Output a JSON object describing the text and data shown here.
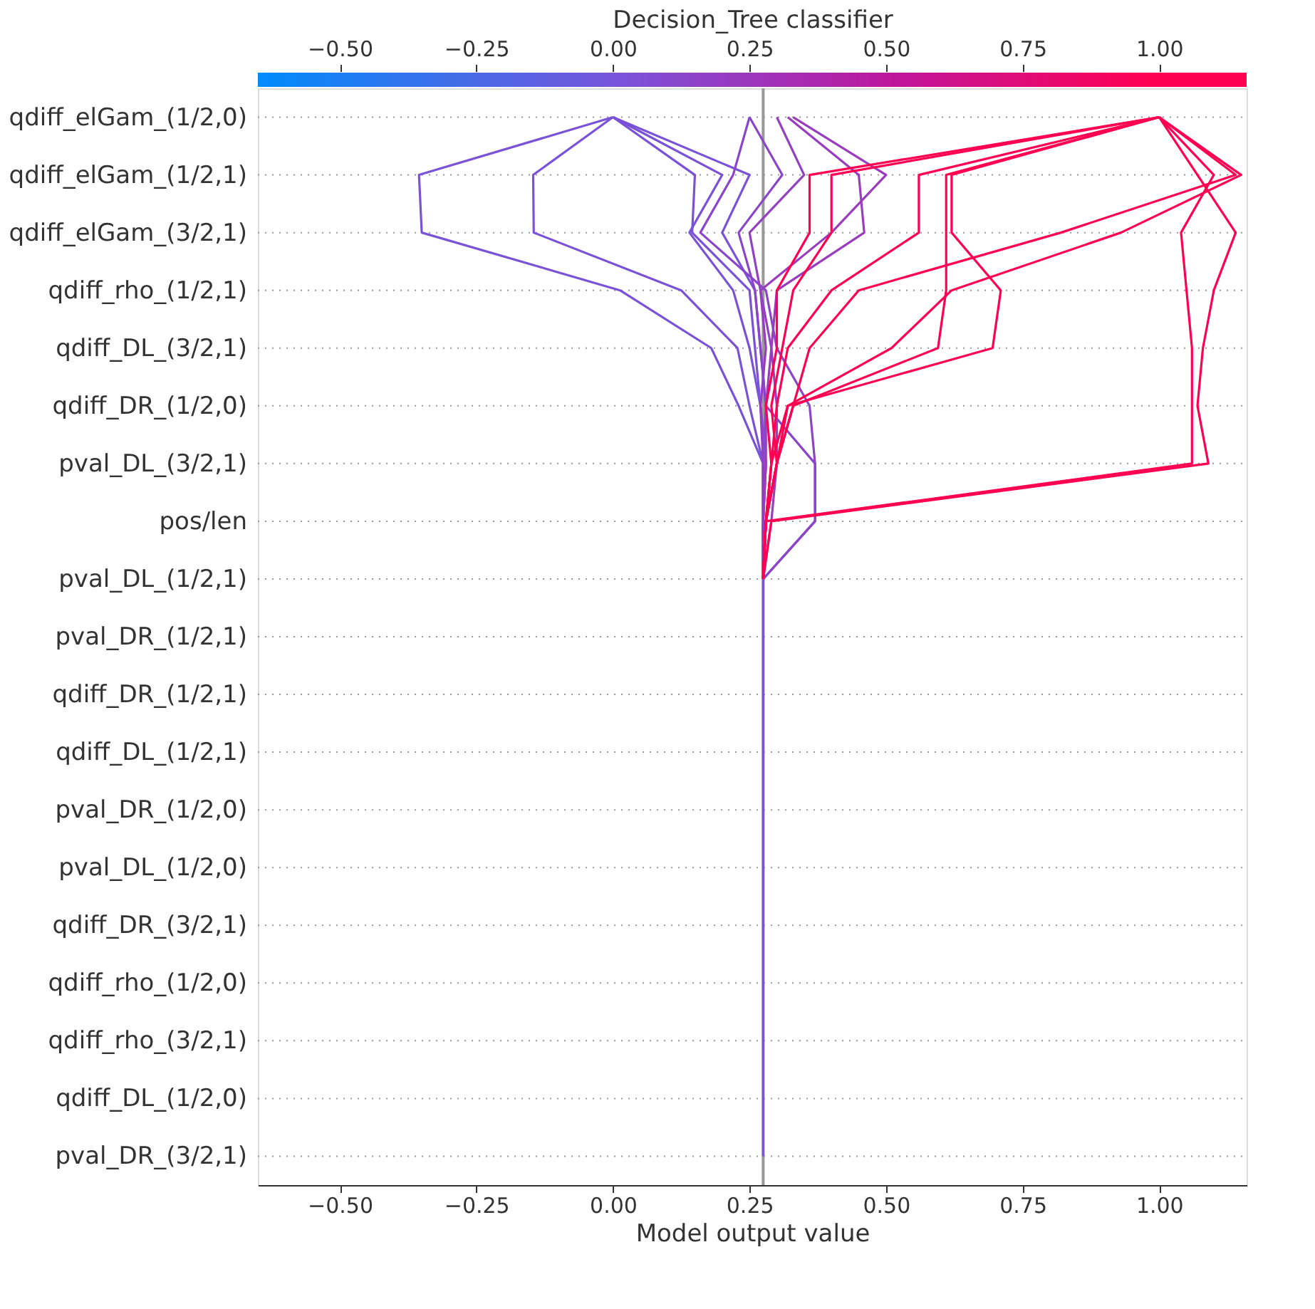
{
  "chart_data": {
    "type": "line",
    "orientation": "horizontal",
    "xlabel": "Model output value",
    "x2label": "Decision_Tree classifier",
    "categories": [
      "qdiff_elGam_(1/2,0)",
      "qdiff_elGam_(1/2,1)",
      "qdiff_elGam_(3/2,1)",
      "qdiff_rho_(1/2,1)",
      "qdiff_DL_(3/2,1)",
      "qdiff_DR_(1/2,0)",
      "pval_DL_(3/2,1)",
      "pos/len",
      "pval_DL_(1/2,1)",
      "pval_DR_(1/2,1)",
      "qdiff_DR_(1/2,1)",
      "qdiff_DL_(1/2,1)",
      "pval_DR_(1/2,0)",
      "pval_DL_(1/2,0)",
      "qdiff_DR_(3/2,1)",
      "qdiff_rho_(1/2,0)",
      "qdiff_rho_(3/2,1)",
      "qdiff_DL_(1/2,0)",
      "pval_DR_(3/2,1)"
    ],
    "xlim": [
      -0.65,
      1.16
    ],
    "xticks": [
      {
        "value": -0.5,
        "label": "−0.50"
      },
      {
        "value": -0.25,
        "label": "−0.25"
      },
      {
        "value": 0.0,
        "label": "0.00"
      },
      {
        "value": 0.25,
        "label": "0.25"
      },
      {
        "value": 0.5,
        "label": "0.50"
      },
      {
        "value": 0.75,
        "label": "0.75"
      },
      {
        "value": 1.0,
        "label": "1.00"
      }
    ],
    "x2lim": [
      -0.65,
      1.16
    ],
    "x2ticks": [
      {
        "value": -0.5,
        "label": "−0.50"
      },
      {
        "value": -0.25,
        "label": "−0.25"
      },
      {
        "value": 0.0,
        "label": "0.00"
      },
      {
        "value": 0.25,
        "label": "0.25"
      },
      {
        "value": 0.5,
        "label": "0.50"
      },
      {
        "value": 0.75,
        "label": "0.75"
      },
      {
        "value": 1.0,
        "label": "1.00"
      }
    ],
    "ref_lines": [
      {
        "axis": "x",
        "value": 0.275,
        "color": "#999999"
      }
    ],
    "grid": "y",
    "line_style": "solid",
    "marker": "none",
    "legend": false,
    "series": [
      {
        "color": "#7a52d8",
        "values": [
          0.0,
          -0.355,
          -0.35,
          0.013,
          0.18,
          0.23,
          0.275,
          0.275,
          0.275,
          0.275,
          0.275,
          0.275,
          0.275,
          0.275,
          0.275,
          0.275,
          0.275,
          0.275,
          0.275
        ]
      },
      {
        "color": "#7a52d8",
        "values": [
          0.0,
          -0.146,
          -0.145,
          0.125,
          0.228,
          0.25,
          0.275,
          0.275,
          0.275,
          null,
          null,
          null,
          null,
          null,
          null,
          null,
          null,
          null,
          null
        ]
      },
      {
        "color": "#7a52d8",
        "values": [
          0.0,
          0.15,
          0.145,
          0.25,
          0.26,
          0.27,
          0.28,
          0.275,
          0.275,
          null,
          null,
          null,
          null,
          null,
          null,
          null,
          null,
          null,
          null
        ]
      },
      {
        "color": "#7a52d8",
        "values": [
          0.0,
          0.2,
          0.14,
          0.22,
          0.25,
          0.27,
          0.28,
          0.275,
          0.275,
          null,
          null,
          null,
          null,
          null,
          null,
          null,
          null,
          null,
          null
        ]
      },
      {
        "color": "#7a52d8",
        "values": [
          0.0,
          0.25,
          0.2,
          0.26,
          0.27,
          0.28,
          0.275,
          0.275,
          0.275,
          null,
          null,
          null,
          null,
          null,
          null,
          null,
          null,
          null,
          null
        ]
      },
      {
        "color": "#9a3cbe",
        "values": [
          0.33,
          0.5,
          0.4,
          0.27,
          0.28,
          0.27,
          0.275,
          0.275,
          0.275,
          null,
          null,
          null,
          null,
          null,
          null,
          null,
          null,
          null,
          null
        ]
      },
      {
        "color": "#9a3cbe",
        "values": [
          0.32,
          0.45,
          0.46,
          0.3,
          0.29,
          0.28,
          0.28,
          0.275,
          0.275,
          null,
          null,
          null,
          null,
          null,
          null,
          null,
          null,
          null,
          null
        ]
      },
      {
        "color": "#8a45c8",
        "values": [
          0.25,
          0.31,
          0.23,
          0.26,
          0.27,
          0.28,
          0.37,
          0.37,
          0.275,
          null,
          null,
          null,
          null,
          null,
          null,
          null,
          null,
          null,
          null
        ]
      },
      {
        "color": "#8a45c8",
        "values": [
          0.25,
          0.22,
          0.16,
          0.28,
          0.3,
          0.36,
          0.37,
          0.37,
          0.275,
          null,
          null,
          null,
          null,
          null,
          null,
          null,
          null,
          null,
          null
        ]
      },
      {
        "color": "#9340c2",
        "values": [
          0.3,
          0.35,
          0.25,
          0.27,
          0.29,
          0.3,
          0.3,
          0.29,
          0.275,
          null,
          null,
          null,
          null,
          null,
          null,
          null,
          null,
          null,
          null
        ]
      },
      {
        "color": "#ff0052",
        "values": [
          1.0,
          1.07,
          1.14,
          1.1,
          1.08,
          1.07,
          1.09,
          0.29,
          0.275,
          null,
          null,
          null,
          null,
          null,
          null,
          null,
          null,
          null,
          null
        ]
      },
      {
        "color": "#ff0052",
        "values": [
          1.0,
          1.1,
          1.04,
          1.05,
          1.06,
          1.06,
          1.06,
          0.28,
          0.275,
          null,
          null,
          null,
          null,
          null,
          null,
          null,
          null,
          null,
          null
        ]
      },
      {
        "color": "#ff0052",
        "values": [
          1.0,
          1.15,
          0.93,
          0.62,
          0.51,
          0.32,
          0.29,
          0.28,
          0.275,
          null,
          null,
          null,
          null,
          null,
          null,
          null,
          null,
          null,
          null
        ]
      },
      {
        "color": "#ff0052",
        "values": [
          1.0,
          0.56,
          0.56,
          0.4,
          0.32,
          0.3,
          0.29,
          0.28,
          0.275,
          null,
          null,
          null,
          null,
          null,
          null,
          null,
          null,
          null,
          null
        ]
      },
      {
        "color": "#ff0052",
        "values": [
          1.0,
          0.61,
          0.61,
          0.61,
          0.595,
          0.33,
          0.3,
          0.28,
          0.275,
          null,
          null,
          null,
          null,
          null,
          null,
          null,
          null,
          null,
          null
        ]
      },
      {
        "color": "#ff0052",
        "values": [
          1.0,
          0.62,
          0.62,
          0.71,
          0.695,
          0.32,
          0.3,
          0.28,
          0.275,
          null,
          null,
          null,
          null,
          null,
          null,
          null,
          null,
          null,
          null
        ]
      },
      {
        "color": "#ff0052",
        "values": [
          1.0,
          0.4,
          0.4,
          0.33,
          0.31,
          0.29,
          0.3,
          0.28,
          0.275,
          null,
          null,
          null,
          null,
          null,
          null,
          null,
          null,
          null,
          null
        ]
      },
      {
        "color": "#ff0052",
        "values": [
          1.0,
          0.36,
          0.36,
          0.3,
          0.3,
          0.28,
          0.29,
          0.28,
          0.275,
          null,
          null,
          null,
          null,
          null,
          null,
          null,
          null,
          null,
          null
        ]
      },
      {
        "color": "#ff0052",
        "values": [
          1.0,
          1.14,
          0.82,
          0.45,
          0.36,
          0.33,
          0.3,
          0.28,
          0.275,
          null,
          null,
          null,
          null,
          null,
          null,
          null,
          null,
          null,
          null
        ]
      }
    ]
  }
}
